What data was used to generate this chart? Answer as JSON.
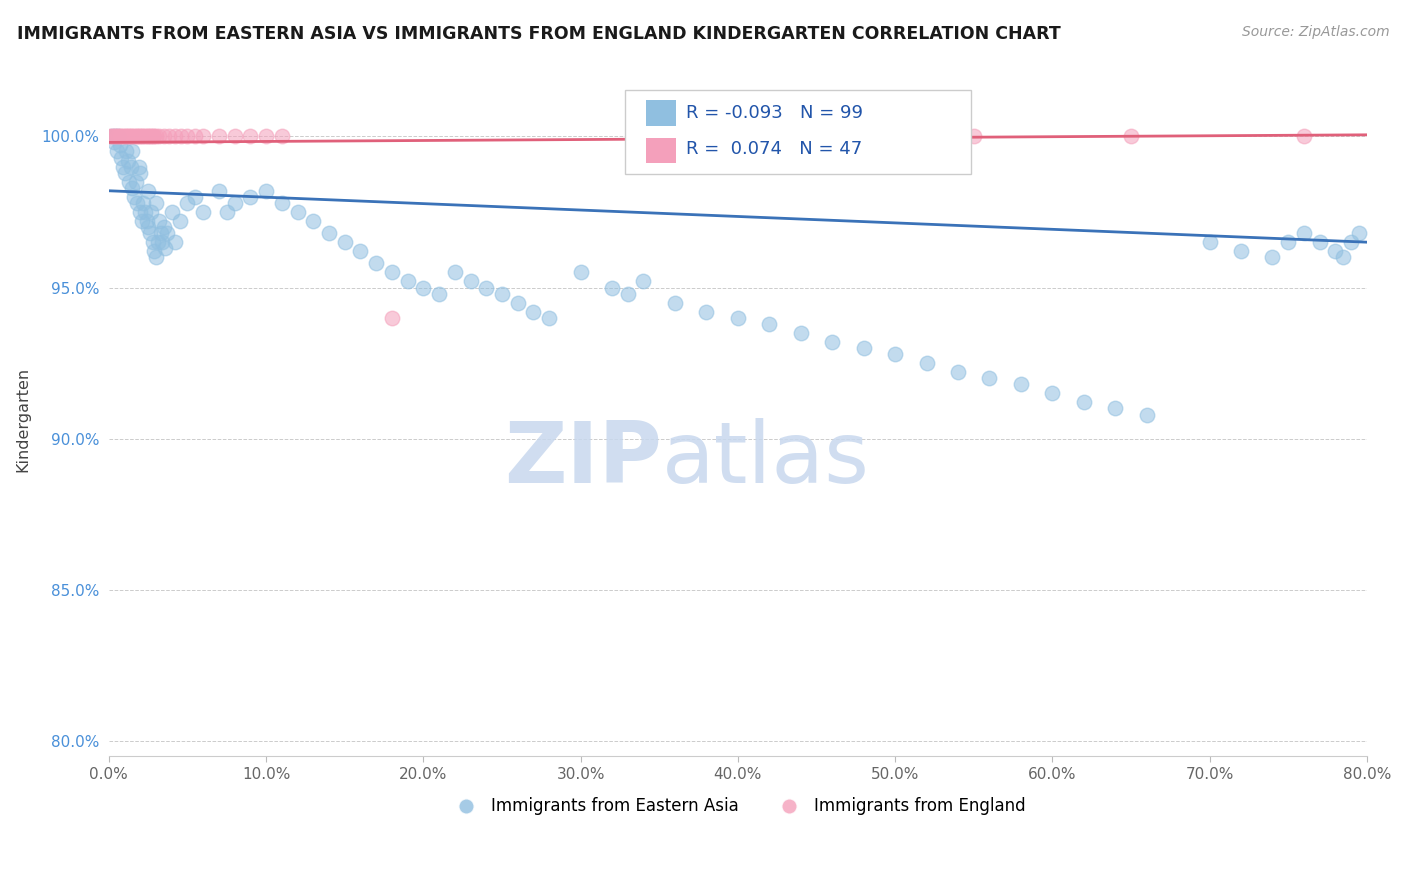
{
  "title": "IMMIGRANTS FROM EASTERN ASIA VS IMMIGRANTS FROM ENGLAND KINDERGARTEN CORRELATION CHART",
  "source": "Source: ZipAtlas.com",
  "ylabel": "Kindergarten",
  "xlim": [
    0.0,
    80.0
  ],
  "ylim": [
    79.5,
    101.8
  ],
  "legend_label1": "Immigrants from Eastern Asia",
  "legend_label2": "Immigrants from England",
  "R1": -0.093,
  "N1": 99,
  "R2": 0.074,
  "N2": 47,
  "blue_color": "#90bfe0",
  "pink_color": "#f4a0bb",
  "blue_line_color": "#3a72b8",
  "pink_line_color": "#e0607a",
  "watermark_zip": "ZIP",
  "watermark_atlas": "atlas",
  "blue_scatter_x": [
    0.2,
    0.3,
    0.4,
    0.5,
    0.6,
    0.7,
    0.8,
    0.9,
    1.0,
    1.1,
    1.2,
    1.3,
    1.4,
    1.5,
    1.5,
    1.6,
    1.7,
    1.8,
    1.9,
    2.0,
    2.0,
    2.1,
    2.2,
    2.3,
    2.4,
    2.5,
    2.5,
    2.6,
    2.7,
    2.8,
    2.9,
    3.0,
    3.0,
    3.1,
    3.2,
    3.3,
    3.4,
    3.5,
    3.6,
    3.7,
    4.0,
    4.2,
    4.5,
    5.0,
    5.5,
    6.0,
    7.0,
    7.5,
    8.0,
    9.0,
    10.0,
    11.0,
    12.0,
    13.0,
    14.0,
    15.0,
    16.0,
    17.0,
    18.0,
    19.0,
    20.0,
    21.0,
    22.0,
    23.0,
    24.0,
    25.0,
    26.0,
    27.0,
    28.0,
    30.0,
    32.0,
    33.0,
    34.0,
    36.0,
    38.0,
    40.0,
    42.0,
    44.0,
    46.0,
    48.0,
    50.0,
    52.0,
    54.0,
    56.0,
    58.0,
    60.0,
    62.0,
    64.0,
    66.0,
    70.0,
    72.0,
    74.0,
    75.0,
    76.0,
    77.0,
    78.0,
    78.5,
    79.0,
    79.5
  ],
  "blue_scatter_y": [
    100.0,
    99.8,
    100.0,
    99.5,
    100.0,
    99.7,
    99.3,
    99.0,
    98.8,
    99.5,
    99.2,
    98.5,
    99.0,
    98.3,
    99.5,
    98.0,
    98.5,
    97.8,
    99.0,
    97.5,
    98.8,
    97.2,
    97.8,
    97.5,
    97.2,
    97.0,
    98.2,
    96.8,
    97.5,
    96.5,
    96.2,
    97.8,
    96.0,
    96.5,
    97.2,
    96.8,
    96.5,
    97.0,
    96.3,
    96.8,
    97.5,
    96.5,
    97.2,
    97.8,
    98.0,
    97.5,
    98.2,
    97.5,
    97.8,
    98.0,
    98.2,
    97.8,
    97.5,
    97.2,
    96.8,
    96.5,
    96.2,
    95.8,
    95.5,
    95.2,
    95.0,
    94.8,
    95.5,
    95.2,
    95.0,
    94.8,
    94.5,
    94.2,
    94.0,
    95.5,
    95.0,
    94.8,
    95.2,
    94.5,
    94.2,
    94.0,
    93.8,
    93.5,
    93.2,
    93.0,
    92.8,
    92.5,
    92.2,
    92.0,
    91.8,
    91.5,
    91.2,
    91.0,
    90.8,
    96.5,
    96.2,
    96.0,
    96.5,
    96.8,
    96.5,
    96.2,
    96.0,
    96.5,
    96.8
  ],
  "pink_scatter_x": [
    0.1,
    0.2,
    0.3,
    0.4,
    0.5,
    0.6,
    0.7,
    0.8,
    0.9,
    1.0,
    1.1,
    1.2,
    1.3,
    1.4,
    1.5,
    1.6,
    1.7,
    1.8,
    1.9,
    2.0,
    2.1,
    2.2,
    2.3,
    2.4,
    2.5,
    2.6,
    2.7,
    2.8,
    2.9,
    3.0,
    3.2,
    3.5,
    3.8,
    4.2,
    4.6,
    5.0,
    5.5,
    6.0,
    7.0,
    8.0,
    9.0,
    10.0,
    11.0,
    18.0,
    55.0,
    65.0,
    76.0
  ],
  "pink_scatter_y": [
    100.0,
    100.0,
    100.0,
    100.0,
    100.0,
    100.0,
    100.0,
    100.0,
    100.0,
    100.0,
    100.0,
    100.0,
    100.0,
    100.0,
    100.0,
    100.0,
    100.0,
    100.0,
    100.0,
    100.0,
    100.0,
    100.0,
    100.0,
    100.0,
    100.0,
    100.0,
    100.0,
    100.0,
    100.0,
    100.0,
    100.0,
    100.0,
    100.0,
    100.0,
    100.0,
    100.0,
    100.0,
    100.0,
    100.0,
    100.0,
    100.0,
    100.0,
    100.0,
    94.0,
    100.0,
    100.0,
    100.0
  ],
  "blue_trendline_x0": 0.0,
  "blue_trendline_y0": 98.2,
  "blue_trendline_x1": 80.0,
  "blue_trendline_y1": 96.5,
  "pink_trendline_x0": 0.0,
  "pink_trendline_y0": 99.8,
  "pink_trendline_x1": 80.0,
  "pink_trendline_y1": 100.05
}
